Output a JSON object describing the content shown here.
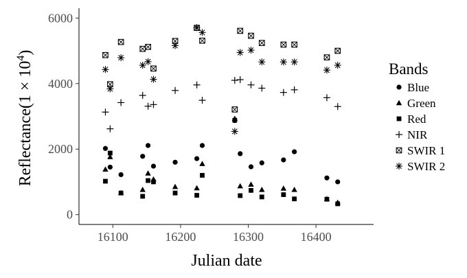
{
  "chart_data": {
    "type": "scatter",
    "title": "",
    "xlabel": "Julian date",
    "ylabel": "Reflectance",
    "ylabel_multiplier": "(1 × 10",
    "ylabel_exponent": "4",
    "ylabel_close": ")",
    "xlim": [
      16050,
      16485
    ],
    "ylim": [
      -300,
      6300
    ],
    "xticks": [
      16100,
      16200,
      16300,
      16400
    ],
    "yticks": [
      0,
      2000,
      4000,
      6000
    ],
    "grid": false,
    "legend": {
      "title": "Bands",
      "placement": "right"
    },
    "series": [
      {
        "name": "Blue",
        "marker": "circle",
        "points": [
          [
            16089,
            2020
          ],
          [
            16096,
            1450
          ],
          [
            16112,
            1220
          ],
          [
            16144,
            1780
          ],
          [
            16152,
            2110
          ],
          [
            16160,
            1480
          ],
          [
            16192,
            1600
          ],
          [
            16224,
            1710
          ],
          [
            16232,
            2110
          ],
          [
            16280,
            2870
          ],
          [
            16288,
            1860
          ],
          [
            16304,
            1460
          ],
          [
            16320,
            1580
          ],
          [
            16352,
            1670
          ],
          [
            16368,
            1920
          ],
          [
            16416,
            1120
          ],
          [
            16432,
            1000
          ]
        ]
      },
      {
        "name": "Green",
        "marker": "triangle",
        "points": [
          [
            16089,
            1380
          ],
          [
            16096,
            1760
          ],
          [
            16112,
            660
          ],
          [
            16144,
            760
          ],
          [
            16152,
            1260
          ],
          [
            16160,
            1080
          ],
          [
            16192,
            850
          ],
          [
            16224,
            810
          ],
          [
            16232,
            1550
          ],
          [
            16280,
            2930
          ],
          [
            16288,
            870
          ],
          [
            16304,
            920
          ],
          [
            16320,
            760
          ],
          [
            16352,
            800
          ],
          [
            16368,
            760
          ],
          [
            16416,
            480
          ],
          [
            16432,
            370
          ]
        ]
      },
      {
        "name": "Red",
        "marker": "square",
        "points": [
          [
            16089,
            1020
          ],
          [
            16096,
            1880
          ],
          [
            16112,
            660
          ],
          [
            16144,
            560
          ],
          [
            16152,
            1040
          ],
          [
            16160,
            1000
          ],
          [
            16192,
            660
          ],
          [
            16224,
            590
          ],
          [
            16232,
            1200
          ],
          [
            16280,
            2880
          ],
          [
            16288,
            580
          ],
          [
            16304,
            740
          ],
          [
            16320,
            540
          ],
          [
            16352,
            610
          ],
          [
            16368,
            480
          ],
          [
            16416,
            470
          ],
          [
            16432,
            330
          ]
        ]
      },
      {
        "name": "NIR",
        "marker": "plus",
        "points": [
          [
            16089,
            3130
          ],
          [
            16096,
            2620
          ],
          [
            16112,
            3420
          ],
          [
            16144,
            3640
          ],
          [
            16152,
            3310
          ],
          [
            16160,
            3360
          ],
          [
            16192,
            3790
          ],
          [
            16224,
            3960
          ],
          [
            16232,
            3490
          ],
          [
            16280,
            4100
          ],
          [
            16288,
            4120
          ],
          [
            16304,
            3960
          ],
          [
            16320,
            3860
          ],
          [
            16352,
            3730
          ],
          [
            16368,
            3810
          ],
          [
            16416,
            3570
          ],
          [
            16432,
            3300
          ]
        ]
      },
      {
        "name": "SWIR 1",
        "marker": "boxed-x",
        "points": [
          [
            16089,
            4870
          ],
          [
            16096,
            3980
          ],
          [
            16112,
            5270
          ],
          [
            16144,
            5060
          ],
          [
            16152,
            5120
          ],
          [
            16160,
            4460
          ],
          [
            16192,
            5300
          ],
          [
            16224,
            5700
          ],
          [
            16232,
            5310
          ],
          [
            16280,
            3210
          ],
          [
            16288,
            5610
          ],
          [
            16304,
            5460
          ],
          [
            16320,
            5240
          ],
          [
            16352,
            5190
          ],
          [
            16368,
            5190
          ],
          [
            16416,
            4800
          ],
          [
            16432,
            5000
          ]
        ]
      },
      {
        "name": "SWIR 2",
        "marker": "asterisk",
        "points": [
          [
            16089,
            4430
          ],
          [
            16096,
            3840
          ],
          [
            16112,
            4790
          ],
          [
            16144,
            4560
          ],
          [
            16152,
            4670
          ],
          [
            16160,
            4130
          ],
          [
            16192,
            5160
          ],
          [
            16224,
            5710
          ],
          [
            16232,
            5560
          ],
          [
            16280,
            2540
          ],
          [
            16288,
            4950
          ],
          [
            16304,
            5020
          ],
          [
            16320,
            4660
          ],
          [
            16352,
            4660
          ],
          [
            16368,
            4660
          ],
          [
            16416,
            4410
          ],
          [
            16432,
            4560
          ]
        ]
      }
    ]
  }
}
